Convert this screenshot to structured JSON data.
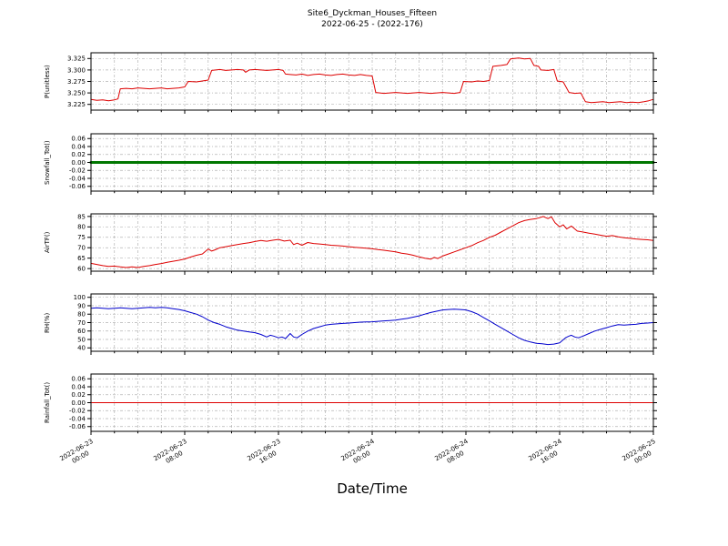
{
  "title": {
    "line1": "Site6_Dyckman_Houses_Fifteen",
    "line2": "2022-06-25 - (2022-176)"
  },
  "xlabel": "Date/Time",
  "colors": {
    "grid": "#b3b3b3",
    "axis": "#000000",
    "background": "#ffffff"
  },
  "x_axis": {
    "range_hours": [
      0,
      48
    ],
    "tick_hours": [
      0,
      8,
      16,
      24,
      32,
      40,
      48
    ],
    "minor_grid_hours_step": 2,
    "tick_labels": [
      {
        "date": "2022-06-23",
        "time": "00:00"
      },
      {
        "date": "2022-06-23",
        "time": "08:00"
      },
      {
        "date": "2022-06-23",
        "time": "16:00"
      },
      {
        "date": "2022-06-24",
        "time": "00:00"
      },
      {
        "date": "2022-06-24",
        "time": "08:00"
      },
      {
        "date": "2022-06-24",
        "time": "16:00"
      },
      {
        "date": "2022-06-25",
        "time": "00:00"
      }
    ]
  },
  "chart_data": [
    {
      "type": "line",
      "ylabel": "P(unitless)",
      "color": "#dd0000",
      "linewidth": 1,
      "ylim": [
        3.2125,
        3.3375
      ],
      "yticks": [
        3.225,
        3.25,
        3.275,
        3.3,
        3.325
      ],
      "ytick_labels": [
        "3.225",
        "3.250",
        "3.275",
        "3.300",
        "3.325"
      ],
      "points": [
        [
          0,
          3.236
        ],
        [
          0.5,
          3.234
        ],
        [
          1,
          3.235
        ],
        [
          1.5,
          3.233
        ],
        [
          2,
          3.235
        ],
        [
          2.3,
          3.237
        ],
        [
          2.5,
          3.259
        ],
        [
          3,
          3.26
        ],
        [
          3.5,
          3.259
        ],
        [
          4,
          3.261
        ],
        [
          4.5,
          3.26
        ],
        [
          5,
          3.259
        ],
        [
          5.5,
          3.26
        ],
        [
          6,
          3.261
        ],
        [
          6.5,
          3.259
        ],
        [
          7,
          3.26
        ],
        [
          7.5,
          3.261
        ],
        [
          8,
          3.263
        ],
        [
          8.3,
          3.275
        ],
        [
          9,
          3.274
        ],
        [
          9.5,
          3.276
        ],
        [
          10,
          3.278
        ],
        [
          10.3,
          3.299
        ],
        [
          11,
          3.301
        ],
        [
          11.5,
          3.299
        ],
        [
          12,
          3.3
        ],
        [
          12.5,
          3.301
        ],
        [
          13,
          3.3
        ],
        [
          13.2,
          3.295
        ],
        [
          13.5,
          3.3
        ],
        [
          14,
          3.301
        ],
        [
          14.5,
          3.3
        ],
        [
          15,
          3.299
        ],
        [
          15.5,
          3.3
        ],
        [
          16,
          3.301
        ],
        [
          16.4,
          3.299
        ],
        [
          16.6,
          3.291
        ],
        [
          17,
          3.29
        ],
        [
          17.5,
          3.289
        ],
        [
          18,
          3.291
        ],
        [
          18.5,
          3.288
        ],
        [
          19,
          3.29
        ],
        [
          19.5,
          3.291
        ],
        [
          20,
          3.289
        ],
        [
          20.5,
          3.288
        ],
        [
          21,
          3.29
        ],
        [
          21.5,
          3.291
        ],
        [
          22,
          3.289
        ],
        [
          22.5,
          3.288
        ],
        [
          23,
          3.29
        ],
        [
          23.5,
          3.288
        ],
        [
          24,
          3.287
        ],
        [
          24.3,
          3.251
        ],
        [
          25,
          3.249
        ],
        [
          25.5,
          3.25
        ],
        [
          26,
          3.251
        ],
        [
          26.5,
          3.25
        ],
        [
          27,
          3.249
        ],
        [
          27.5,
          3.25
        ],
        [
          28,
          3.251
        ],
        [
          28.5,
          3.25
        ],
        [
          29,
          3.249
        ],
        [
          29.5,
          3.25
        ],
        [
          30,
          3.251
        ],
        [
          30.5,
          3.25
        ],
        [
          31,
          3.249
        ],
        [
          31.5,
          3.251
        ],
        [
          31.8,
          3.275
        ],
        [
          32.5,
          3.274
        ],
        [
          33,
          3.276
        ],
        [
          33.5,
          3.275
        ],
        [
          34,
          3.277
        ],
        [
          34.3,
          3.308
        ],
        [
          35,
          3.31
        ],
        [
          35.5,
          3.312
        ],
        [
          35.8,
          3.324
        ],
        [
          36.5,
          3.326
        ],
        [
          37,
          3.324
        ],
        [
          37.5,
          3.325
        ],
        [
          37.8,
          3.31
        ],
        [
          38.2,
          3.308
        ],
        [
          38.4,
          3.3
        ],
        [
          39,
          3.299
        ],
        [
          39.5,
          3.301
        ],
        [
          39.8,
          3.276
        ],
        [
          40.3,
          3.274
        ],
        [
          40.8,
          3.251
        ],
        [
          41.3,
          3.249
        ],
        [
          41.8,
          3.25
        ],
        [
          42.2,
          3.231
        ],
        [
          42.7,
          3.229
        ],
        [
          43.2,
          3.23
        ],
        [
          43.7,
          3.231
        ],
        [
          44.2,
          3.229
        ],
        [
          44.7,
          3.23
        ],
        [
          45.2,
          3.231
        ],
        [
          45.7,
          3.229
        ],
        [
          46.2,
          3.23
        ],
        [
          46.7,
          3.229
        ],
        [
          47.2,
          3.231
        ],
        [
          47.6,
          3.233
        ],
        [
          48,
          3.236
        ]
      ]
    },
    {
      "type": "line",
      "ylabel": "Snowfall_Tot()",
      "color": "#007700",
      "linewidth": 3,
      "ylim": [
        -0.072,
        0.072
      ],
      "yticks": [
        -0.06,
        -0.04,
        -0.02,
        0,
        0.02,
        0.04,
        0.06
      ],
      "ytick_labels": [
        "-0.06",
        "-0.04",
        "-0.02",
        "0.00",
        "0.02",
        "0.04",
        "0.06"
      ],
      "points": [
        [
          0,
          0
        ],
        [
          48,
          0
        ]
      ]
    },
    {
      "type": "line",
      "ylabel": "AirTF()",
      "color": "#dd0000",
      "linewidth": 1,
      "ylim": [
        58.75,
        86.25
      ],
      "yticks": [
        60,
        65,
        70,
        75,
        80,
        85
      ],
      "ytick_labels": [
        "60",
        "65",
        "70",
        "75",
        "80",
        "85"
      ],
      "points": [
        [
          0,
          62.5
        ],
        [
          0.5,
          62
        ],
        [
          1,
          61.4
        ],
        [
          1.5,
          61
        ],
        [
          2,
          61.2
        ],
        [
          2.5,
          60.8
        ],
        [
          3,
          60.5
        ],
        [
          3.5,
          60.8
        ],
        [
          4,
          60.5
        ],
        [
          4.5,
          61
        ],
        [
          5,
          61.4
        ],
        [
          5.5,
          62
        ],
        [
          6,
          62.4
        ],
        [
          6.5,
          63
        ],
        [
          7,
          63.5
        ],
        [
          7.5,
          64
        ],
        [
          8,
          64.6
        ],
        [
          8.5,
          65.5
        ],
        [
          9,
          66.4
        ],
        [
          9.5,
          67
        ],
        [
          10,
          69.4
        ],
        [
          10.3,
          68.4
        ],
        [
          10.6,
          69
        ],
        [
          11,
          70
        ],
        [
          11.5,
          70.5
        ],
        [
          12,
          71
        ],
        [
          12.5,
          71.5
        ],
        [
          13,
          72
        ],
        [
          13.5,
          72.4
        ],
        [
          14,
          73
        ],
        [
          14.5,
          73.5
        ],
        [
          15,
          73.1
        ],
        [
          15.5,
          73.6
        ],
        [
          16,
          74
        ],
        [
          16.5,
          73.2
        ],
        [
          17,
          73.6
        ],
        [
          17.3,
          71.5
        ],
        [
          17.6,
          72.2
        ],
        [
          18,
          71.2
        ],
        [
          18.5,
          72.5
        ],
        [
          19,
          72
        ],
        [
          19.5,
          71.8
        ],
        [
          20,
          71.5
        ],
        [
          20.5,
          71.2
        ],
        [
          21,
          71
        ],
        [
          21.5,
          70.8
        ],
        [
          22,
          70.5
        ],
        [
          22.5,
          70.2
        ],
        [
          23,
          70
        ],
        [
          23.5,
          69.8
        ],
        [
          24,
          69.5
        ],
        [
          24.5,
          69.1
        ],
        [
          25,
          68.8
        ],
        [
          25.5,
          68.4
        ],
        [
          26,
          68
        ],
        [
          26.5,
          67.4
        ],
        [
          27,
          67
        ],
        [
          27.5,
          66.4
        ],
        [
          28,
          65.6
        ],
        [
          28.5,
          65
        ],
        [
          29,
          64.5
        ],
        [
          29.3,
          65.4
        ],
        [
          29.6,
          64.8
        ],
        [
          30,
          66
        ],
        [
          30.5,
          67
        ],
        [
          31,
          68
        ],
        [
          31.5,
          69
        ],
        [
          32,
          70
        ],
        [
          32.5,
          71
        ],
        [
          33,
          72.4
        ],
        [
          33.5,
          73.5
        ],
        [
          34,
          75
        ],
        [
          34.5,
          76
        ],
        [
          35,
          77.5
        ],
        [
          35.5,
          79
        ],
        [
          36,
          80.5
        ],
        [
          36.5,
          82
        ],
        [
          37,
          83
        ],
        [
          37.5,
          83.6
        ],
        [
          38,
          84
        ],
        [
          38.3,
          84.4
        ],
        [
          38.6,
          85
        ],
        [
          39,
          84
        ],
        [
          39.3,
          84.8
        ],
        [
          39.6,
          82
        ],
        [
          40,
          80
        ],
        [
          40.3,
          81
        ],
        [
          40.6,
          79
        ],
        [
          41,
          80.4
        ],
        [
          41.5,
          78
        ],
        [
          42,
          77.5
        ],
        [
          42.5,
          77
        ],
        [
          43,
          76.5
        ],
        [
          43.5,
          76
        ],
        [
          44,
          75.5
        ],
        [
          44.5,
          75.8
        ],
        [
          45,
          75.2
        ],
        [
          45.5,
          74.8
        ],
        [
          46,
          74.5
        ],
        [
          46.5,
          74.2
        ],
        [
          47,
          74
        ],
        [
          47.5,
          73.8
        ],
        [
          48,
          73.5
        ]
      ]
    },
    {
      "type": "line",
      "ylabel": "RH(%)",
      "color": "#0000cc",
      "linewidth": 1,
      "ylim": [
        36,
        104
      ],
      "yticks": [
        40,
        50,
        60,
        70,
        80,
        90,
        100
      ],
      "ytick_labels": [
        "40",
        "50",
        "60",
        "70",
        "80",
        "90",
        "100"
      ],
      "points": [
        [
          0,
          87
        ],
        [
          0.5,
          87.5
        ],
        [
          1,
          87
        ],
        [
          1.5,
          86.5
        ],
        [
          2,
          87
        ],
        [
          2.5,
          87.5
        ],
        [
          3,
          87
        ],
        [
          3.5,
          86.5
        ],
        [
          4,
          87
        ],
        [
          4.5,
          87.5
        ],
        [
          5,
          88
        ],
        [
          5.5,
          87.5
        ],
        [
          6,
          88
        ],
        [
          6.5,
          87.5
        ],
        [
          7,
          86.5
        ],
        [
          7.5,
          85.5
        ],
        [
          8,
          84
        ],
        [
          8.5,
          82
        ],
        [
          9,
          80
        ],
        [
          9.5,
          77
        ],
        [
          10,
          73
        ],
        [
          10.5,
          70
        ],
        [
          11,
          68
        ],
        [
          11.5,
          65
        ],
        [
          12,
          63
        ],
        [
          12.5,
          61
        ],
        [
          13,
          60
        ],
        [
          13.5,
          59
        ],
        [
          14,
          58
        ],
        [
          14.5,
          56
        ],
        [
          15,
          53
        ],
        [
          15.3,
          55
        ],
        [
          15.6,
          54
        ],
        [
          16,
          52
        ],
        [
          16.3,
          53
        ],
        [
          16.6,
          51
        ],
        [
          17,
          57
        ],
        [
          17.3,
          53
        ],
        [
          17.6,
          52
        ],
        [
          18,
          56
        ],
        [
          18.5,
          60
        ],
        [
          19,
          63
        ],
        [
          19.5,
          65
        ],
        [
          20,
          67
        ],
        [
          20.5,
          68
        ],
        [
          21,
          68.5
        ],
        [
          21.5,
          69
        ],
        [
          22,
          69.5
        ],
        [
          22.5,
          70
        ],
        [
          23,
          70.5
        ],
        [
          23.5,
          70.8
        ],
        [
          24,
          71
        ],
        [
          24.5,
          71.5
        ],
        [
          25,
          72
        ],
        [
          25.5,
          72.5
        ],
        [
          26,
          73
        ],
        [
          26.5,
          74
        ],
        [
          27,
          75
        ],
        [
          27.5,
          76.5
        ],
        [
          28,
          78
        ],
        [
          28.5,
          80
        ],
        [
          29,
          82
        ],
        [
          29.5,
          83.5
        ],
        [
          30,
          85
        ],
        [
          30.5,
          85.5
        ],
        [
          31,
          86
        ],
        [
          31.5,
          85.5
        ],
        [
          32,
          85
        ],
        [
          32.5,
          83
        ],
        [
          33,
          80
        ],
        [
          33.5,
          76
        ],
        [
          34,
          72
        ],
        [
          34.5,
          68
        ],
        [
          35,
          64
        ],
        [
          35.5,
          60
        ],
        [
          36,
          56
        ],
        [
          36.5,
          52
        ],
        [
          37,
          49
        ],
        [
          37.5,
          47
        ],
        [
          38,
          45.5
        ],
        [
          38.5,
          45
        ],
        [
          39,
          44
        ],
        [
          39.5,
          44.5
        ],
        [
          40,
          46
        ],
        [
          40.5,
          52
        ],
        [
          40.8,
          54
        ],
        [
          41,
          55
        ],
        [
          41.3,
          53
        ],
        [
          41.6,
          52
        ],
        [
          42,
          54
        ],
        [
          42.5,
          57
        ],
        [
          43,
          60
        ],
        [
          43.5,
          62
        ],
        [
          44,
          64
        ],
        [
          44.5,
          66
        ],
        [
          45,
          67.5
        ],
        [
          45.5,
          67
        ],
        [
          46,
          67.5
        ],
        [
          46.5,
          68
        ],
        [
          47,
          69
        ],
        [
          47.5,
          69.5
        ],
        [
          48,
          70
        ]
      ]
    },
    {
      "type": "line",
      "ylabel": "Rainfall_Tot()",
      "color": "#dd0000",
      "linewidth": 1,
      "ylim": [
        -0.072,
        0.072
      ],
      "yticks": [
        -0.06,
        -0.04,
        -0.02,
        0,
        0.02,
        0.04,
        0.06
      ],
      "ytick_labels": [
        "-0.06",
        "-0.04",
        "-0.02",
        "0.00",
        "0.02",
        "0.04",
        "0.06"
      ],
      "points": [
        [
          0,
          0
        ],
        [
          48,
          0
        ]
      ]
    }
  ]
}
